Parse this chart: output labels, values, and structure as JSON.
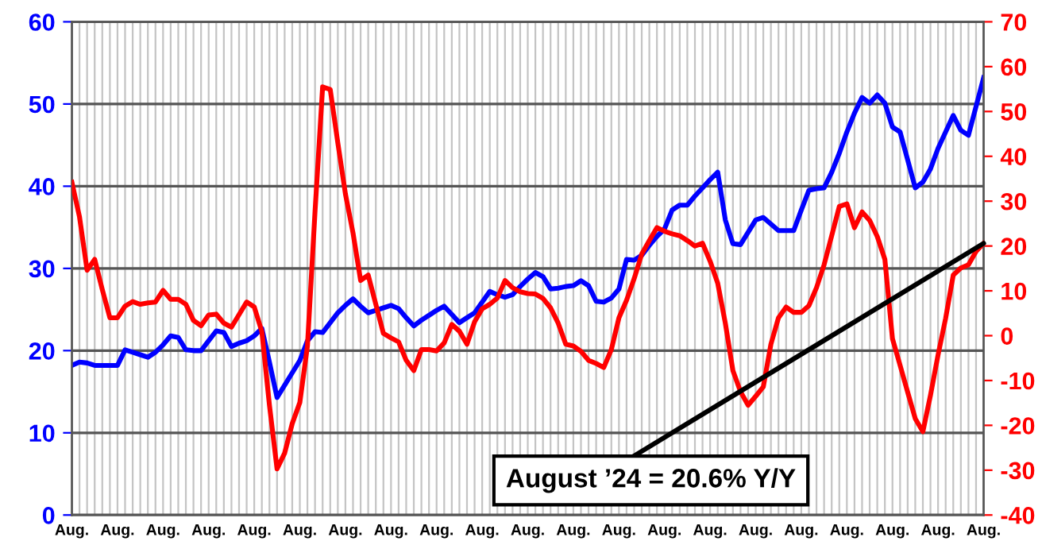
{
  "chart_data": {
    "type": "line",
    "categories": [
      "Aug.",
      null,
      null,
      null,
      null,
      null,
      "Aug.",
      null,
      null,
      null,
      null,
      null,
      "Aug.",
      null,
      null,
      null,
      null,
      null,
      "Aug.",
      null,
      null,
      null,
      null,
      null,
      "Aug.",
      null,
      null,
      null,
      null,
      null,
      "Aug.",
      null,
      null,
      null,
      null,
      null,
      "Aug.",
      null,
      null,
      null,
      null,
      null,
      "Aug.",
      null,
      null,
      null,
      null,
      null,
      "Aug.",
      null,
      null,
      null,
      null,
      null,
      "Aug.",
      null,
      null,
      null,
      null,
      null,
      "Aug.",
      null,
      null,
      null,
      null,
      null,
      "Aug.",
      null,
      null,
      null,
      null,
      null,
      "Aug.",
      null,
      null,
      null,
      null,
      null,
      "Aug.",
      null,
      null,
      null,
      null,
      null,
      "Aug.",
      null,
      null,
      null,
      null,
      null,
      "Aug.",
      null,
      null,
      null,
      null,
      null,
      "Aug.",
      null,
      null,
      null,
      null,
      null,
      "Aug.",
      null,
      null,
      null,
      null,
      null,
      "Aug.",
      null,
      null,
      null,
      null,
      null,
      "Aug.",
      null,
      null,
      null,
      null,
      null,
      "Aug."
    ],
    "series": [
      {
        "color": "#0000ff",
        "axis": "y",
        "values": [
          18.2,
          18.6,
          18.5,
          18.2,
          18.2,
          18.2,
          18.2,
          20.1,
          19.8,
          19.5,
          19.2,
          19.8,
          20.7,
          21.8,
          21.6,
          20.1,
          20,
          20,
          21.2,
          22.4,
          22.2,
          20.5,
          20.9,
          21.2,
          21.8,
          22.7,
          18.6,
          14.3,
          15.8,
          17.3,
          18.8,
          21.2,
          22.3,
          22.2,
          23.4,
          24.6,
          25.5,
          26.3,
          25.4,
          24.6,
          24.9,
          25.2,
          25.5,
          25.1,
          24,
          23,
          23.7,
          24.3,
          24.9,
          25.4,
          24.4,
          23.4,
          24,
          24.6,
          25.9,
          27.2,
          26.8,
          26.5,
          26.8,
          27.8,
          28.7,
          29.5,
          29,
          27.5,
          27.6,
          27.8,
          27.9,
          28.5,
          27.9,
          26,
          25.9,
          26.4,
          27.5,
          31.1,
          31,
          31.6,
          32.8,
          33.9,
          34.8,
          37.1,
          37.7,
          37.7,
          38.8,
          39.8,
          40.8,
          41.7,
          35.9,
          33,
          32.9,
          34.4,
          35.9,
          36.2,
          35.4,
          34.6,
          34.6,
          34.6,
          37.1,
          39.5,
          39.7,
          39.8,
          41.7,
          44,
          46.6,
          48.9,
          50.8,
          50.1,
          51.1,
          50.1,
          47.2,
          46.6,
          43.2,
          39.8,
          40.5,
          42.1,
          44.6,
          46.6,
          48.6,
          46.8,
          46.2,
          49.7,
          53.2
        ]
      },
      {
        "color": "#ff0000",
        "axis": "y2",
        "values": [
          34.2,
          26.5,
          14.6,
          17,
          10.3,
          4,
          4,
          6.6,
          7.6,
          7,
          7.3,
          7.5,
          10.1,
          8.1,
          8.1,
          7,
          3.4,
          2.2,
          4.6,
          4.8,
          2.8,
          1.9,
          4.7,
          7.5,
          6.4,
          0.9,
          -15.5,
          -29.7,
          -26.2,
          -19.6,
          -14.9,
          -2.3,
          27.7,
          55.5,
          54.9,
          43,
          31.6,
          22.9,
          12.3,
          13.5,
          7,
          0.5,
          -0.5,
          -1.4,
          -5.5,
          -7.8,
          -3.1,
          -3.1,
          -3.4,
          -1.6,
          2.5,
          1,
          -1.9,
          3.1,
          6,
          7,
          8.4,
          12.3,
          10.7,
          9.8,
          9.4,
          9.3,
          8.3,
          6.2,
          2.8,
          -1.9,
          -2.3,
          -3.5,
          -5.5,
          -6.2,
          -7.1,
          -3.1,
          4,
          7.9,
          12.7,
          18.2,
          21.2,
          24.1,
          23.3,
          22.7,
          22.3,
          21.2,
          20,
          20.6,
          16.6,
          11.7,
          2.8,
          -7.8,
          -12.5,
          -15.5,
          -13.5,
          -11.4,
          -1.9,
          4,
          6.4,
          5.2,
          5.2,
          6.7,
          10.7,
          15.8,
          22.3,
          28.8,
          29.4,
          24.1,
          27.6,
          25.7,
          22.1,
          17,
          -0.7,
          -6.6,
          -12.6,
          -18.5,
          -21.4,
          -13.3,
          -4.3,
          3.9,
          13.5,
          15.1,
          15.8,
          18.8,
          20.6
        ]
      }
    ],
    "ylim": [
      0,
      60
    ],
    "yticks": [
      0,
      10,
      20,
      30,
      40,
      50,
      60
    ],
    "y2lim": [
      -40,
      70
    ],
    "y2ticks": [
      -40,
      -30,
      -20,
      -10,
      0,
      10,
      20,
      30,
      40,
      50,
      60,
      70
    ],
    "grid": true,
    "annotations": [
      "August ’24 = 20.6% Y/Y"
    ]
  }
}
